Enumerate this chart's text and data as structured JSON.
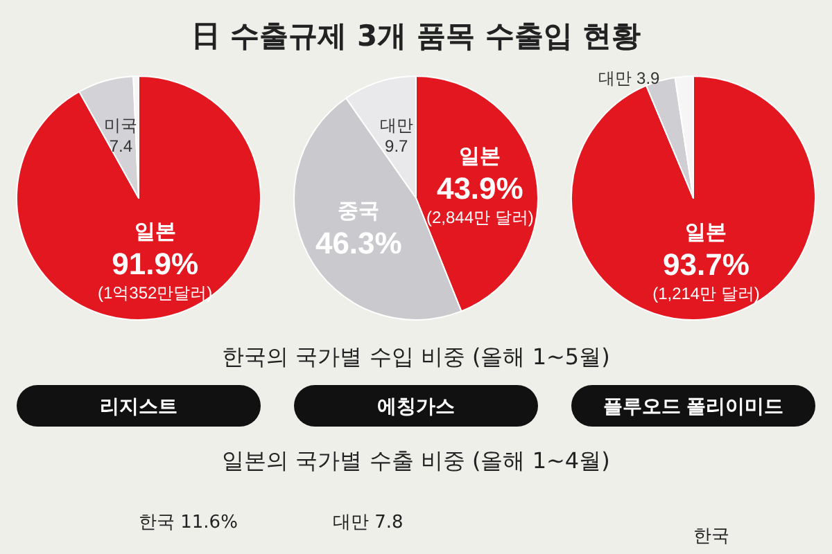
{
  "chart_data": [
    {
      "type": "pie",
      "title": "리지스트",
      "categories": [
        "일본",
        "미국",
        null
      ],
      "values": [
        91.9,
        7.4,
        0.7
      ],
      "colors": [
        "#e3171f",
        "#d3d3d7",
        "#f6f6f6"
      ],
      "value_labels": [
        "91.9%",
        "7.4",
        null
      ],
      "annotations": [
        "日 수출규제 3개 품목 수출입 현황",
        "한국의 국가별 수입 비중 (올해 1~5월)",
        "일본의 국가별 수출 비중 (올해 1~4월)",
        {
          "text": "(1억352만달러)",
          "x": "일본"
        },
        "한국 11.6%"
      ]
    },
    {
      "type": "pie",
      "title": "에칭가스",
      "categories": [
        "일본",
        "중국",
        "대만"
      ],
      "values": [
        43.9,
        46.3,
        9.7
      ],
      "colors": [
        "#e3171f",
        "#cacace",
        "#e9e9ec"
      ],
      "value_labels": [
        "43.9%",
        "46.3%",
        "9.7"
      ],
      "annotations": [
        {
          "text": "(2,844만 달러)",
          "x": "일본"
        },
        "대만 7.8"
      ]
    },
    {
      "type": "pie",
      "title": "플루오드 폴리이미드",
      "categories": [
        "일본",
        "대만",
        null
      ],
      "values": [
        93.7,
        3.9,
        2.4
      ],
      "colors": [
        "#e3171f",
        "#cfcfd3",
        "#f6f6f6"
      ],
      "value_labels": [
        "93.7%",
        "3.9",
        null
      ],
      "annotations": [
        {
          "text": "(1,214만 달러)",
          "x": "일본"
        },
        "한국"
      ]
    }
  ]
}
